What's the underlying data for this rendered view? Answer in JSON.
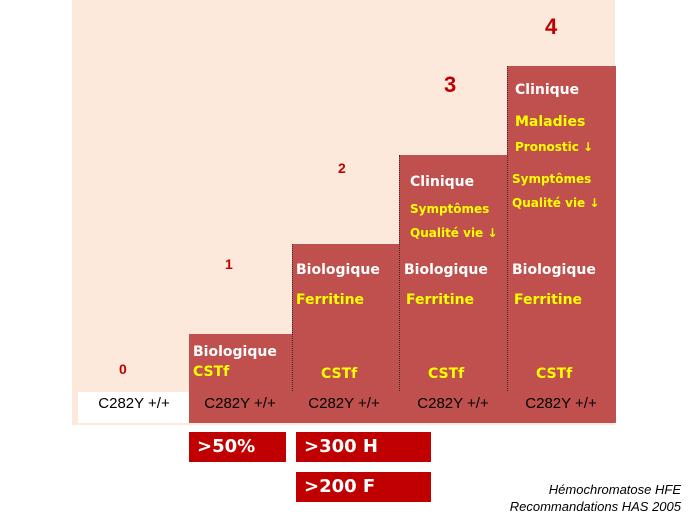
{
  "levels": [
    "0",
    "1",
    "2",
    "3",
    "4"
  ],
  "genotype": "C282Y +/+",
  "col1": {
    "l1": "Biologique",
    "l2": "CSTf"
  },
  "col2": {
    "l1": "Biologique",
    "l2": "Ferritine",
    "l3": "CSTf"
  },
  "col3": {
    "l1": "Clinique",
    "l2": "Symptômes",
    "l3": "Qualité vie ↓",
    "l4": "Biologique",
    "l5": "Ferritine",
    "l6": "CSTf"
  },
  "col4": {
    "l1": "Clinique",
    "l2": "Maladies",
    "l3": "Pronostic ↓",
    "l4": "Symptômes",
    "l5": "Qualité vie ↓",
    "l6": "Biologique",
    "l7": "Ferritine",
    "l8": "CSTf"
  },
  "thresholds": {
    "cstf": ">50%",
    "ferritine_h": ">300 H",
    "ferritine_f": ">200 F"
  },
  "credit": {
    "line1": "Hémochromatose HFE",
    "line2": "Recommandations HAS 2005"
  },
  "colors": {
    "background": "#fde9dc",
    "step": "#c0504d",
    "threshold": "#c00000",
    "level_number": "#c00000",
    "highlight": "#ffff00"
  }
}
